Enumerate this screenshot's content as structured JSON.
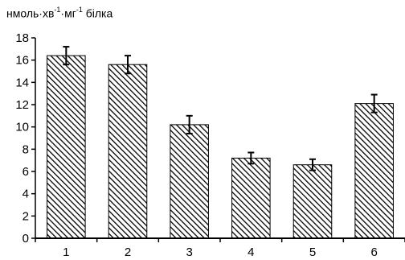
{
  "chart_data": {
    "type": "bar",
    "title": {
      "prefix": "нмоль·хв",
      "sup1": "-1",
      "middle": "·мг",
      "sup2": "-1",
      "suffix": " білка"
    },
    "categories": [
      "1",
      "2",
      "3",
      "4",
      "5",
      "6"
    ],
    "values": [
      16.4,
      15.6,
      10.2,
      7.2,
      6.6,
      12.1
    ],
    "errors": [
      0.8,
      0.8,
      0.8,
      0.5,
      0.5,
      0.8
    ],
    "yticks": [
      "0",
      "2",
      "4",
      "6",
      "8",
      "10",
      "12",
      "14",
      "16",
      "18"
    ],
    "ylim": [
      0,
      18
    ],
    "grid": false,
    "bar_fill": "hatched-diagonal",
    "colors": {
      "bar_stroke": "#000000",
      "hatch": "#000000",
      "background": "#ffffff"
    }
  }
}
